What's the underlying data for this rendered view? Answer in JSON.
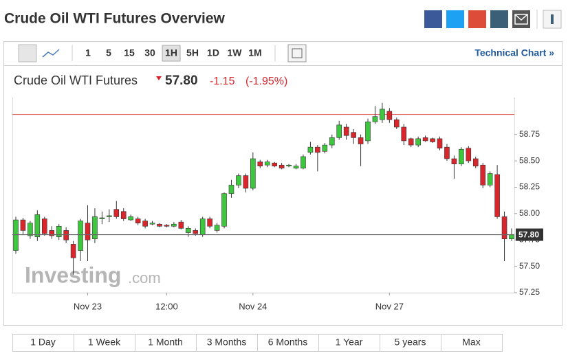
{
  "header": {
    "title": "Crude Oil WTI Futures Overview"
  },
  "toolbar": {
    "intervals": [
      "1",
      "5",
      "15",
      "30",
      "1H",
      "5H",
      "1D",
      "1W",
      "1M"
    ],
    "active": "1H",
    "link": "Technical Chart »"
  },
  "quote": {
    "name": "Crude Oil WTI Futures",
    "price": "57.80",
    "change": "-1.15",
    "change_pct": "(-1.95%)"
  },
  "watermark": {
    "brand": "Investing",
    "suffix": ".com"
  },
  "ranges": [
    "1 Day",
    "1 Week",
    "1 Month",
    "3 Months",
    "6 Months",
    "1 Year",
    "5 years",
    "Max"
  ],
  "chart_data": {
    "type": "candlestick",
    "x": [
      null,
      null,
      null,
      null,
      null,
      null,
      null,
      null,
      null,
      null,
      "Nov 23",
      null,
      null,
      null,
      null,
      null,
      null,
      null,
      null,
      null,
      null,
      "12:00",
      null,
      null,
      null,
      null,
      null,
      null,
      null,
      null,
      null,
      null,
      null,
      "Nov 24",
      null,
      null,
      null,
      null,
      null,
      null,
      null,
      null,
      null,
      null,
      null,
      null,
      null,
      null,
      null,
      null,
      null,
      null,
      "Nov 27",
      null,
      null,
      null,
      null,
      null,
      null,
      null,
      null,
      null,
      null,
      null,
      null,
      null,
      null,
      null,
      null,
      null
    ],
    "open": [
      57.65,
      57.94,
      57.79,
      57.78,
      57.95,
      57.84,
      57.78,
      57.84,
      57.71,
      57.65,
      57.91,
      57.76,
      57.95,
      57.97,
      58.04,
      58.02,
      57.94,
      57.95,
      57.93,
      57.9,
      57.9,
      57.89,
      57.88,
      57.92,
      57.82,
      57.84,
      57.8,
      57.95,
      57.84,
      57.88,
      58.19,
      58.27,
      58.36,
      58.24,
      58.49,
      58.46,
      58.48,
      58.46,
      58.45,
      58.43,
      58.43,
      58.58,
      58.63,
      58.59,
      58.65,
      58.72,
      58.82,
      58.77,
      58.72,
      58.69,
      58.87,
      58.89,
      58.97,
      58.89,
      58.82,
      58.71,
      58.65,
      58.72,
      58.71,
      58.71,
      58.63,
      58.52,
      58.47,
      58.62,
      58.52,
      58.46,
      58.27,
      58.37,
      57.97,
      57.76
    ],
    "high": [
      57.97,
      57.96,
      57.93,
      58.03,
      57.97,
      57.88,
      57.9,
      57.87,
      57.74,
      57.95,
      58.08,
      58.05,
      58.02,
      58.04,
      58.12,
      58.05,
      57.99,
      57.97,
      57.95,
      57.93,
      57.91,
      57.9,
      57.92,
      57.94,
      57.88,
      57.86,
      57.97,
      57.97,
      57.91,
      58.2,
      58.32,
      58.38,
      58.38,
      58.58,
      58.51,
      58.51,
      58.49,
      58.48,
      58.47,
      58.47,
      58.56,
      58.68,
      58.65,
      58.67,
      58.75,
      58.88,
      58.85,
      58.8,
      58.75,
      58.9,
      59.02,
      59.05,
      59.0,
      58.91,
      58.85,
      58.72,
      58.73,
      58.74,
      58.72,
      58.73,
      58.66,
      58.55,
      58.63,
      58.64,
      58.54,
      58.48,
      58.4,
      58.46,
      58.02,
      57.86
    ],
    "low": [
      57.62,
      57.8,
      57.76,
      57.74,
      57.79,
      57.76,
      57.75,
      57.72,
      57.42,
      57.55,
      57.55,
      57.72,
      57.9,
      57.92,
      57.95,
      57.93,
      57.93,
      57.89,
      57.86,
      57.89,
      57.87,
      57.87,
      57.87,
      57.85,
      57.78,
      57.79,
      57.78,
      57.86,
      57.82,
      57.86,
      58.15,
      58.24,
      58.2,
      58.22,
      58.43,
      58.44,
      58.44,
      58.42,
      58.44,
      58.42,
      58.42,
      58.56,
      58.4,
      58.57,
      58.62,
      58.7,
      58.7,
      58.66,
      58.45,
      58.66,
      58.85,
      58.86,
      58.86,
      58.8,
      58.65,
      58.63,
      58.63,
      58.68,
      58.67,
      58.6,
      58.5,
      58.33,
      58.45,
      58.48,
      58.43,
      58.24,
      58.25,
      57.95,
      57.55,
      57.74
    ],
    "close": [
      57.94,
      57.84,
      57.91,
      57.99,
      57.81,
      57.79,
      57.88,
      57.75,
      57.58,
      57.93,
      57.75,
      57.97,
      57.96,
      57.98,
      57.97,
      57.95,
      57.97,
      57.91,
      57.88,
      57.91,
      57.88,
      57.88,
      57.9,
      57.86,
      57.86,
      57.81,
      57.95,
      57.88,
      57.89,
      58.19,
      58.27,
      58.36,
      58.24,
      58.52,
      58.45,
      58.49,
      58.45,
      58.43,
      58.46,
      58.45,
      58.54,
      58.63,
      58.58,
      58.65,
      58.72,
      58.84,
      58.74,
      58.72,
      58.66,
      58.87,
      58.92,
      58.99,
      58.89,
      58.82,
      58.69,
      58.65,
      58.71,
      58.69,
      58.68,
      58.62,
      58.52,
      58.47,
      58.61,
      58.5,
      58.45,
      58.27,
      58.38,
      57.97,
      57.76,
      57.8
    ],
    "up_color": "#3fc63f",
    "down_color": "#d9262c",
    "current_price": 57.8,
    "reference_line": 58.94,
    "ylim": [
      57.25,
      59.1
    ],
    "yticks": [
      {
        "value": 57.25,
        "label": "57.25"
      },
      {
        "value": 57.5,
        "label": "57.50"
      },
      {
        "value": 57.75,
        "label": "57.75"
      },
      {
        "value": 58,
        "label": "58.00"
      },
      {
        "value": 58.25,
        "label": "58.25"
      },
      {
        "value": 58.5,
        "label": "58.50"
      },
      {
        "value": 58.75,
        "label": "58.75"
      }
    ]
  }
}
